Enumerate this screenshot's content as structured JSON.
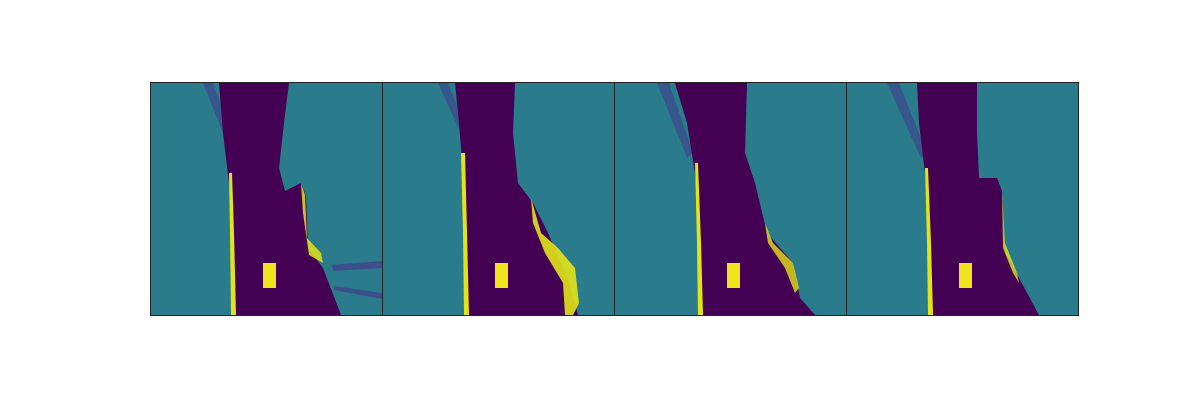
{
  "figure": {
    "panel_count": 4,
    "colormap": "viridis",
    "colors": {
      "background": "#2a7b8b",
      "road": "#440154",
      "edge": "#e2e418",
      "marker": "#f0e51c",
      "shadow": "#3b4f8c",
      "frame": "#222222"
    }
  }
}
